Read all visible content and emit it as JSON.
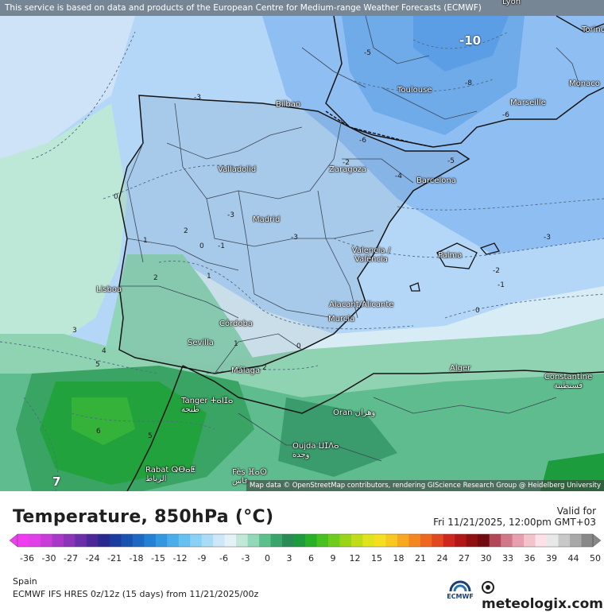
{
  "map": {
    "attribution_top": "This service is based on data and products of the European Centre for Medium-range Weather Forecasts (ECMWF)",
    "attribution_bottom": "Map data © OpenStreetMap contributors, rendering GIScience Research Group @ Heidelberg University",
    "cities": [
      {
        "id": "lyon",
        "label": "Lyon"
      },
      {
        "id": "torino",
        "label": "Torino"
      },
      {
        "id": "monaco",
        "label": "Monaco"
      },
      {
        "id": "bilbao",
        "label": "Bilbao"
      },
      {
        "id": "toulouse",
        "label": "Toulouse"
      },
      {
        "id": "marseille",
        "label": "Marseille"
      },
      {
        "id": "valladolid",
        "label": "Valladolid"
      },
      {
        "id": "zaragoza",
        "label": "Zaragoza"
      },
      {
        "id": "barcelona",
        "label": "Barcelona"
      },
      {
        "id": "madrid",
        "label": "Madrid"
      },
      {
        "id": "palma",
        "label": "Palma"
      },
      {
        "id": "valencia",
        "label": "Valencia / València"
      },
      {
        "id": "lisboa",
        "label": "Lisboa"
      },
      {
        "id": "alicante",
        "label": "Alacant/Alicante"
      },
      {
        "id": "murcia",
        "label": "Murcia"
      },
      {
        "id": "cordoba",
        "label": "Córdoba"
      },
      {
        "id": "sevilla",
        "label": "Sevilla"
      },
      {
        "id": "malaga",
        "label": "Málaga"
      },
      {
        "id": "alger",
        "label": "Alger"
      },
      {
        "id": "constantine",
        "label": "Constantine قسنطينة"
      },
      {
        "id": "tanger",
        "label": "Tanger ⵜⴰⵏⵊⴰ طنجة"
      },
      {
        "id": "oran",
        "label": "Oran وهران"
      },
      {
        "id": "oujda",
        "label": "Oujda ⵡⵊⴷⴰ وجدة"
      },
      {
        "id": "rabat",
        "label": "Rabat ⵕⴱⴰⵟ الرباط"
      },
      {
        "id": "fes",
        "label": "Fès ⴼⴰⵙ فاس"
      }
    ],
    "isotherm_labels": [
      "-10",
      "-5",
      "-8",
      "-6",
      "-3",
      "-6",
      "-5",
      "-4",
      "-3",
      "-3",
      "-3",
      "-2",
      "-1",
      "0",
      "0",
      "0",
      "-1",
      "1",
      "2",
      "1",
      "1",
      "2",
      "3",
      "4",
      "5",
      "6",
      "5",
      "7",
      "0",
      "2",
      "-2"
    ]
  },
  "footer": {
    "title": "Temperature, 850hPa (°C)",
    "valid_label": "Valid for",
    "valid_time": "Fri 11/21/2025, 12:00pm GMT+03",
    "region": "Spain",
    "model": "ECMWF IFS HRES 0z/12z (15 days) from  11/21/2025/00z",
    "ecmwf_label": "ECMWF",
    "brand": "meteologix.com"
  },
  "colorbar": {
    "ticks": [
      "-36",
      "-30",
      "-27",
      "-24",
      "-21",
      "-18",
      "-15",
      "-12",
      "-9",
      "-6",
      "-3",
      "0",
      "3",
      "6",
      "9",
      "12",
      "15",
      "18",
      "21",
      "24",
      "27",
      "30",
      "33",
      "36",
      "39",
      "44",
      "50"
    ],
    "colors": [
      "#f03cf0",
      "#e040e8",
      "#c83cd8",
      "#a838c8",
      "#8a34b8",
      "#6a2ea8",
      "#4b2898",
      "#2a2a8e",
      "#1a3c9e",
      "#1a52b0",
      "#1c68c2",
      "#2480d2",
      "#3498e0",
      "#4aaeea",
      "#66c0f0",
      "#88d0f4",
      "#aadcf6",
      "#cce8f8",
      "#e4f2f8",
      "#bfe8d8",
      "#90d8b8",
      "#5cbf8c",
      "#3aa46c",
      "#2a8c54",
      "#1c9c3c",
      "#28b028",
      "#48c020",
      "#70cc1c",
      "#98d418",
      "#c0dc18",
      "#e0e41c",
      "#f4e020",
      "#f8c820",
      "#f8a820",
      "#f48820",
      "#ec6820",
      "#e04820",
      "#cc2820",
      "#b01818",
      "#901010",
      "#700c10",
      "#b04858",
      "#d07888",
      "#e8a0b0",
      "#f4c4cc",
      "#fae2e6",
      "#e8e8e8",
      "#c8c8c8",
      "#a8a8a8",
      "#888888"
    ]
  }
}
